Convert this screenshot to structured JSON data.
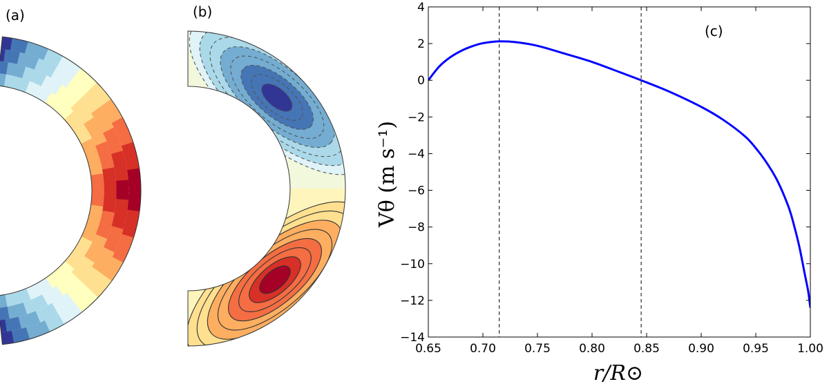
{
  "panels": {
    "a_label": "(a)",
    "b_label": "(b)",
    "c_label": "(c)"
  },
  "colors": {
    "diverging": [
      "#313695",
      "#4575b4",
      "#74add1",
      "#abd9e9",
      "#e0f3f8",
      "#ffffbf",
      "#fee090",
      "#fdae61",
      "#f46d43",
      "#d73027",
      "#a50026"
    ],
    "line": "#0000ff"
  },
  "chart_data": [
    {
      "type": "heatmap",
      "label": "(a)",
      "colormap": "RdYlBu_r",
      "contour_lines": false
    },
    {
      "type": "heatmap",
      "label": "(b)",
      "colormap": "RdYlBu_r",
      "contour_lines": true,
      "negative_contours": "dashed",
      "positive_contours": "solid"
    },
    {
      "type": "line",
      "label": "(c)",
      "xlabel": "r/R⊙",
      "ylabel": "Vθ (m s⁻¹)",
      "xlim": [
        0.65,
        1.0
      ],
      "ylim": [
        -14,
        4
      ],
      "xticks": [
        "0.65",
        "0.70",
        "0.75",
        "0.80",
        "0.85",
        "0.90",
        "0.95",
        "1.00"
      ],
      "yticks": [
        "4",
        "2",
        "0",
        "−2",
        "−4",
        "−6",
        "−8",
        "−10",
        "−12",
        "−14"
      ],
      "grid": false,
      "vlines": [
        0.715,
        0.845
      ],
      "series": [
        {
          "x": [
            0.65,
            0.66,
            0.67,
            0.68,
            0.69,
            0.7,
            0.715,
            0.73,
            0.75,
            0.775,
            0.8,
            0.825,
            0.845,
            0.87,
            0.9,
            0.92,
            0.94,
            0.95,
            0.96,
            0.97,
            0.98,
            0.985,
            0.99,
            0.995,
            0.998,
            1.0
          ],
          "y": [
            0.0,
            0.75,
            1.25,
            1.6,
            1.85,
            2.02,
            2.12,
            2.08,
            1.88,
            1.45,
            1.0,
            0.45,
            0.0,
            -0.6,
            -1.45,
            -2.15,
            -3.05,
            -3.7,
            -4.5,
            -5.5,
            -6.9,
            -7.9,
            -9.1,
            -10.6,
            -11.5,
            -12.4
          ]
        }
      ]
    }
  ]
}
